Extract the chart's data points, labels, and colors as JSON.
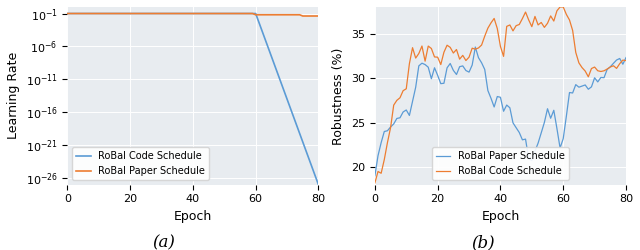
{
  "fig_width": 6.4,
  "fig_height": 2.5,
  "dpi": 100,
  "background_color": "#e8ecf0",
  "subplot_a": {
    "xlabel": "Epoch",
    "ylabel": "Learning Rate",
    "xlim": [
      0,
      80
    ],
    "ylim_low": -27,
    "ylim_high": 0,
    "ytick_exponents": [
      -1,
      -6,
      -11,
      -16,
      -21,
      -26
    ],
    "xticks": [
      0,
      20,
      40,
      60,
      80
    ],
    "legend": [
      {
        "label": "RoBal Code Schedule",
        "color": "#5b9bd5"
      },
      {
        "label": "RoBal Paper Schedule",
        "color": "#ed7d31"
      }
    ]
  },
  "subplot_b": {
    "xlabel": "Epoch",
    "ylabel": "Robustness (%)",
    "xlim": [
      0,
      80
    ],
    "ylim": [
      18,
      38
    ],
    "yticks": [
      20,
      25,
      30,
      35
    ],
    "xticks": [
      0,
      20,
      40,
      60,
      80
    ],
    "legend": [
      {
        "label": "RoBal Paper Schedule",
        "color": "#5b9bd5"
      },
      {
        "label": "RoBal Code Schedule",
        "color": "#ed7d31"
      }
    ]
  },
  "caption_a": "(a)",
  "caption_b": "(b)"
}
